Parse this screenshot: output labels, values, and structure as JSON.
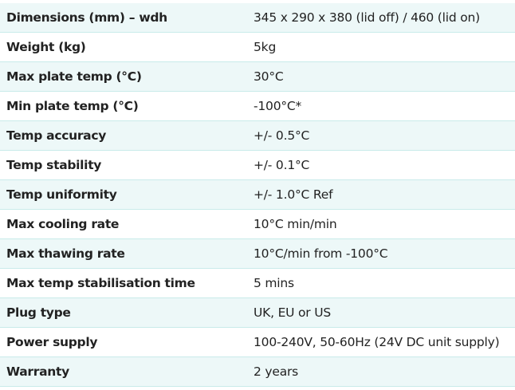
{
  "table": {
    "rows": [
      [
        "Dimensions (mm) – wdh",
        "345 x 290 x 380 (lid off) / 460 (lid on)"
      ],
      [
        "Weight (kg)",
        "5kg"
      ],
      [
        "Max plate temp (°C)",
        "30°C"
      ],
      [
        "Min plate temp (°C)",
        "-100°C*"
      ],
      [
        "Temp accuracy",
        "+/- 0.5°C"
      ],
      [
        "Temp stability",
        "+/- 0.1°C"
      ],
      [
        "Temp uniformity",
        "+/- 1.0°C Ref"
      ],
      [
        "Max cooling rate",
        "10°C min/min"
      ],
      [
        "Max thawing rate",
        "10°C/min from -100°C"
      ],
      [
        "Max temp stabilisation time",
        "5 mins"
      ],
      [
        "Plug type",
        "UK, EU or US"
      ],
      [
        "Power supply",
        "100-240V, 50-60Hz (24V DC unit supply)"
      ],
      [
        "Warranty",
        "2 years"
      ]
    ]
  }
}
